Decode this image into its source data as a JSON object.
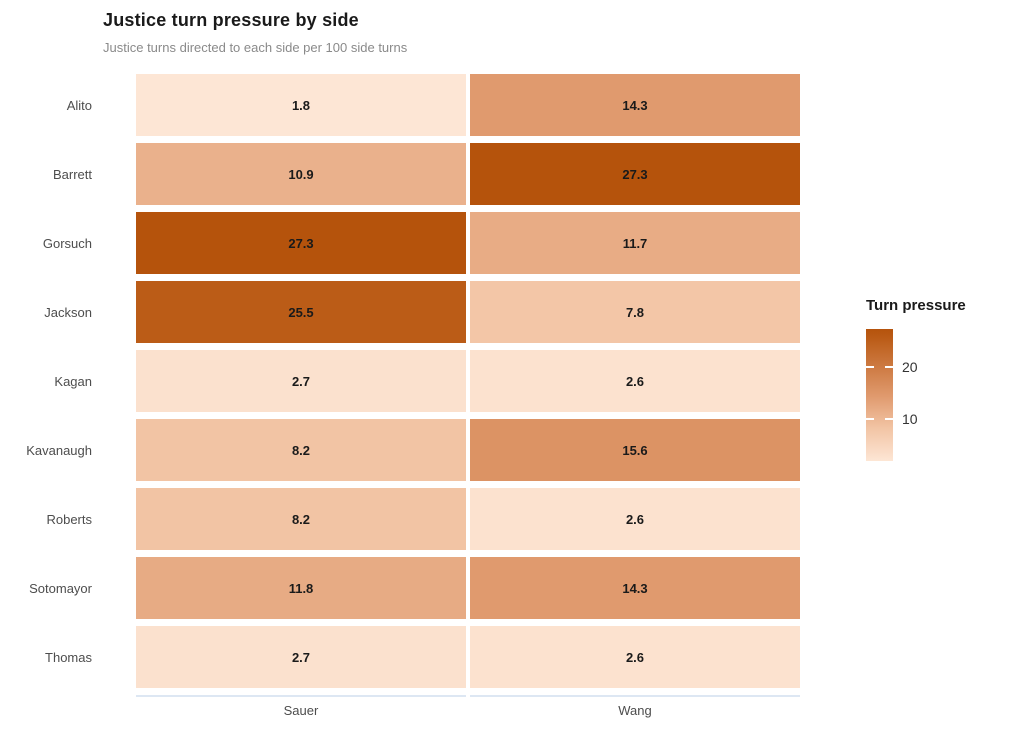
{
  "title": "Justice turn pressure by side",
  "subtitle": "Justice turns directed to each side per 100 side turns",
  "chart_data": {
    "type": "heatmap",
    "title": "Justice turn pressure by side",
    "subtitle": "Justice turns directed to each side per 100 side turns",
    "rows": [
      "Alito",
      "Barrett",
      "Gorsuch",
      "Jackson",
      "Kagan",
      "Kavanaugh",
      "Roberts",
      "Sotomayor",
      "Thomas"
    ],
    "columns": [
      "Sauer",
      "Wang"
    ],
    "values": [
      [
        1.8,
        14.3
      ],
      [
        10.9,
        27.3
      ],
      [
        27.3,
        11.7
      ],
      [
        25.5,
        7.8
      ],
      [
        2.7,
        2.6
      ],
      [
        8.2,
        15.6
      ],
      [
        8.2,
        2.6
      ],
      [
        11.8,
        14.3
      ],
      [
        2.7,
        2.6
      ]
    ],
    "value_range": [
      1.8,
      27.3
    ],
    "legend": {
      "title": "Turn pressure",
      "ticks": [
        10,
        20
      ],
      "position": "right"
    },
    "color_scale": {
      "stops": [
        [
          1.8,
          "#fde6d5"
        ],
        [
          8.2,
          "#f2c4a4"
        ],
        [
          14.3,
          "#e09a6e"
        ],
        [
          20.0,
          "#cd7a42"
        ],
        [
          25.5,
          "#bb5c17"
        ],
        [
          27.3,
          "#b5530c"
        ]
      ]
    },
    "layout": {
      "grid_gap_color": "#ffffff",
      "axis_line_color": "#dde7f3",
      "background": "#ffffff"
    }
  }
}
